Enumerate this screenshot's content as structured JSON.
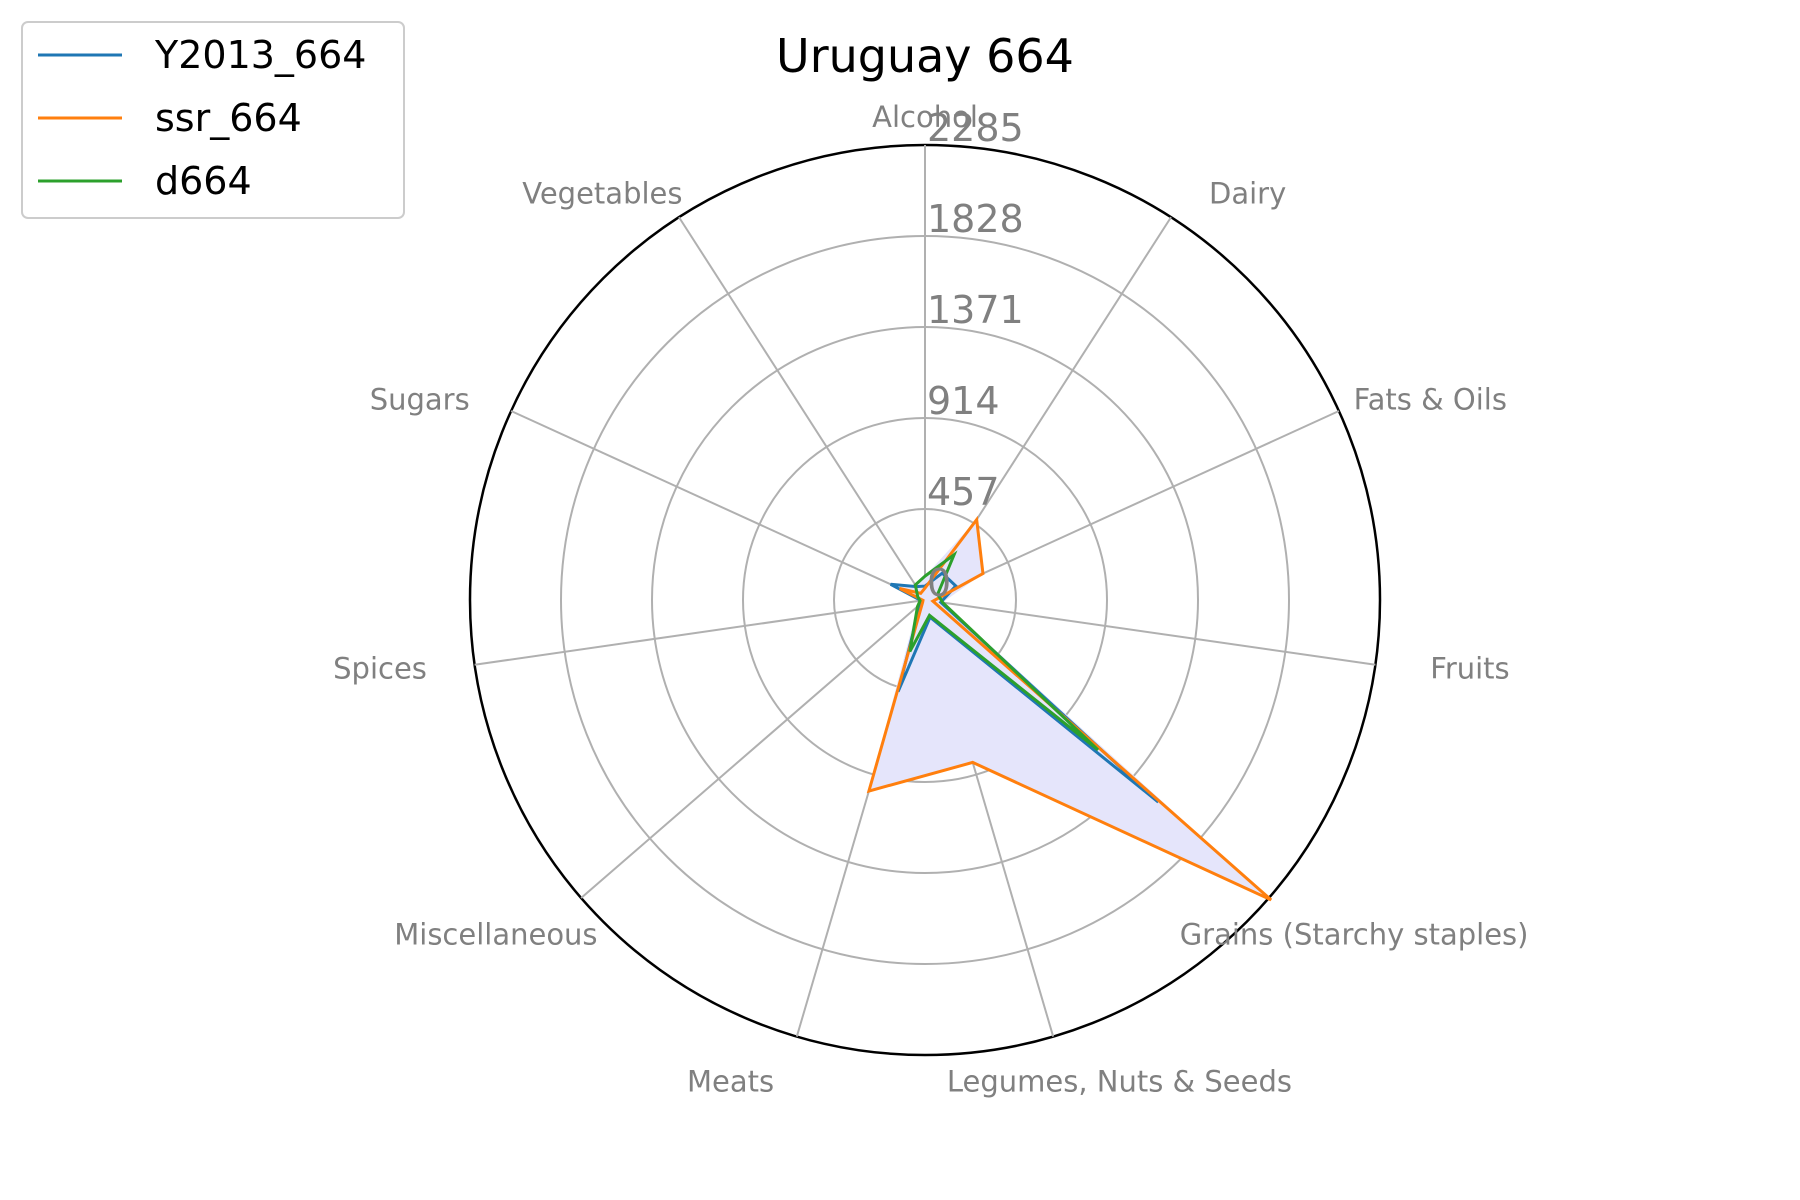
{
  "chart_data": {
    "type": "radar",
    "title": "Uruguay 664",
    "categories": [
      "Alcohol",
      "Dairy",
      "Fats & Oils",
      "Fruits",
      "Grains (Starchy staples)",
      "Legumes, Nuts & Seeds",
      "Meats",
      "Miscellaneous",
      "Spices",
      "Sugars",
      "Vegetables"
    ],
    "radial_ticks": [
      "0",
      "457",
      "914",
      "1371",
      "1828",
      "2285"
    ],
    "rmax": 2285,
    "grid": true,
    "legend_position": "top-left",
    "fill_color": "#e5e5fb",
    "series": [
      {
        "name": "Y2013_664",
        "color": "#1f77b4",
        "values": [
          70,
          160,
          170,
          80,
          1550,
          90,
          480,
          30,
          20,
          190,
          80
        ]
      },
      {
        "name": "ssr_664",
        "color": "#ff7f0e",
        "values": [
          60,
          480,
          320,
          40,
          2300,
          850,
          1000,
          15,
          10,
          140,
          40
        ]
      },
      {
        "name": "d664",
        "color": "#2ca02c",
        "values": [
          120,
          270,
          70,
          90,
          1150,
          80,
          270,
          50,
          25,
          40,
          90
        ]
      }
    ]
  }
}
